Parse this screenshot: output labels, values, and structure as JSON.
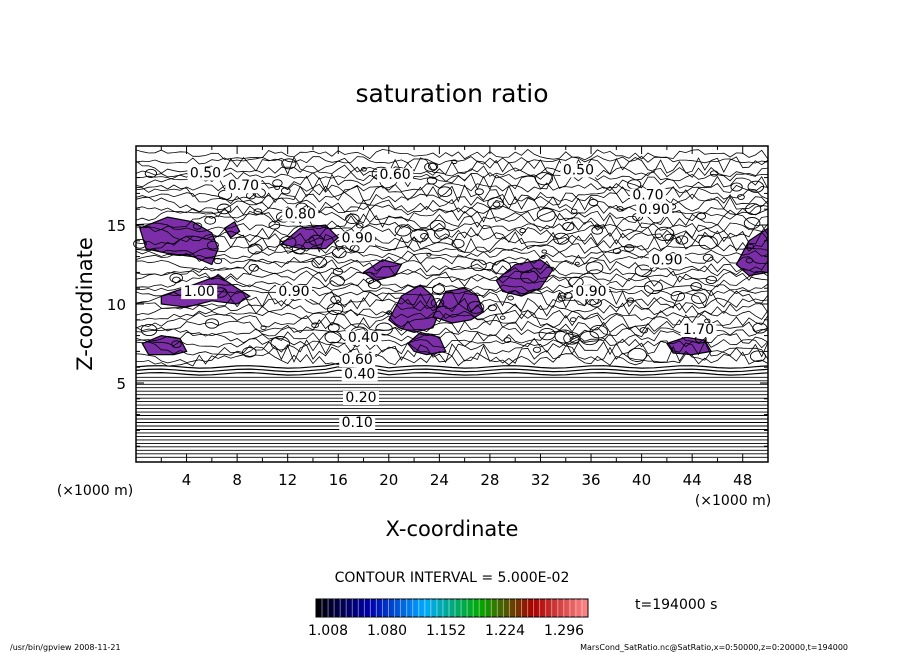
{
  "chart_data": {
    "type": "contour",
    "title": "saturation ratio",
    "xlabel": "X-coordinate",
    "ylabel": "Z-coordinate",
    "x_unit": "(×1000 m)",
    "y_unit": "(×1000 m)",
    "xlim": [
      0,
      50
    ],
    "ylim": [
      0,
      20
    ],
    "x_ticks": [
      4,
      8,
      12,
      16,
      20,
      24,
      28,
      32,
      36,
      40,
      44,
      48
    ],
    "y_ticks": [
      5,
      10,
      15
    ],
    "contour_interval_text": "CONTOUR INTERVAL = 5.000E-02",
    "time_text": "t=194000 s",
    "colorbar": {
      "ticks": [
        "1.008",
        "1.080",
        "1.152",
        "1.224",
        "1.296"
      ],
      "colors": [
        "#000000",
        "#0000aa",
        "#00aaff",
        "#00aa00",
        "#aa0000",
        "#ff8888"
      ]
    },
    "fill_color": "#7b2ea8",
    "contour_labels": [
      {
        "x": 5.5,
        "y": 18.0,
        "text": "0.50"
      },
      {
        "x": 20.5,
        "y": 17.9,
        "text": "0.60"
      },
      {
        "x": 35.0,
        "y": 18.2,
        "text": "0.50"
      },
      {
        "x": 8.5,
        "y": 17.2,
        "text": "0.70"
      },
      {
        "x": 40.5,
        "y": 16.6,
        "text": "0.70"
      },
      {
        "x": 13.0,
        "y": 15.4,
        "text": "0.80"
      },
      {
        "x": 41.0,
        "y": 15.7,
        "text": "0.90"
      },
      {
        "x": 17.5,
        "y": 13.9,
        "text": "0.90"
      },
      {
        "x": 42.0,
        "y": 12.5,
        "text": "0.90"
      },
      {
        "x": 5.0,
        "y": 10.5,
        "text": "1.00"
      },
      {
        "x": 12.5,
        "y": 10.5,
        "text": "0.90"
      },
      {
        "x": 36.0,
        "y": 10.5,
        "text": "0.90"
      },
      {
        "x": 44.5,
        "y": 8.1,
        "text": "1.70"
      },
      {
        "x": 18.0,
        "y": 7.6,
        "text": "0.40"
      },
      {
        "x": 17.5,
        "y": 6.2,
        "text": "0.60"
      },
      {
        "x": 17.7,
        "y": 5.3,
        "text": "0.40"
      },
      {
        "x": 17.8,
        "y": 3.8,
        "text": "0.20"
      },
      {
        "x": 17.5,
        "y": 2.2,
        "text": "0.10"
      }
    ],
    "supersaturated_regions": [
      [
        [
          0.3,
          14.8
        ],
        [
          2.5,
          15.5
        ],
        [
          4.5,
          15.2
        ],
        [
          6.0,
          14.5
        ],
        [
          6.5,
          13.5
        ],
        [
          6.0,
          12.5
        ],
        [
          4.5,
          13.0
        ],
        [
          2.5,
          13.2
        ],
        [
          0.8,
          13.5
        ]
      ],
      [
        [
          2.0,
          10.5
        ],
        [
          4.5,
          11.2
        ],
        [
          6.5,
          11.8
        ],
        [
          8.0,
          11.0
        ],
        [
          9.0,
          10.5
        ],
        [
          8.0,
          10.0
        ],
        [
          6.0,
          10.2
        ],
        [
          4.0,
          9.8
        ],
        [
          2.0,
          10.0
        ]
      ],
      [
        [
          11.5,
          13.8
        ],
        [
          13.0,
          14.8
        ],
        [
          15.0,
          15.0
        ],
        [
          16.0,
          14.2
        ],
        [
          15.0,
          13.5
        ],
        [
          13.0,
          13.5
        ]
      ],
      [
        [
          7.0,
          14.8
        ],
        [
          7.8,
          15.2
        ],
        [
          8.2,
          14.6
        ],
        [
          7.5,
          14.2
        ]
      ],
      [
        [
          0.5,
          7.5
        ],
        [
          2.0,
          8.0
        ],
        [
          3.5,
          7.8
        ],
        [
          4.0,
          7.0
        ],
        [
          3.0,
          6.8
        ],
        [
          1.0,
          6.8
        ]
      ],
      [
        [
          18.0,
          12.0
        ],
        [
          19.5,
          12.8
        ],
        [
          21.0,
          12.5
        ],
        [
          20.5,
          11.8
        ],
        [
          19.0,
          11.5
        ]
      ],
      [
        [
          20.0,
          9.0
        ],
        [
          21.0,
          10.5
        ],
        [
          22.5,
          11.2
        ],
        [
          23.5,
          10.5
        ],
        [
          24.0,
          9.5
        ],
        [
          23.5,
          8.5
        ],
        [
          22.0,
          8.2
        ],
        [
          20.8,
          8.5
        ]
      ],
      [
        [
          23.5,
          9.2
        ],
        [
          24.5,
          10.8
        ],
        [
          26.0,
          11.0
        ],
        [
          27.0,
          10.5
        ],
        [
          27.5,
          9.5
        ],
        [
          26.5,
          9.0
        ],
        [
          25.0,
          8.8
        ]
      ],
      [
        [
          21.5,
          7.5
        ],
        [
          22.5,
          8.2
        ],
        [
          24.0,
          7.9
        ],
        [
          24.5,
          7.0
        ],
        [
          23.0,
          6.8
        ],
        [
          22.0,
          7.0
        ]
      ],
      [
        [
          28.5,
          11.5
        ],
        [
          30.0,
          12.5
        ],
        [
          32.0,
          12.8
        ],
        [
          33.0,
          12.2
        ],
        [
          32.0,
          11.0
        ],
        [
          30.5,
          10.5
        ],
        [
          29.0,
          10.8
        ]
      ],
      [
        [
          42.0,
          7.5
        ],
        [
          43.5,
          7.9
        ],
        [
          45.0,
          7.7
        ],
        [
          45.5,
          7.0
        ],
        [
          44.0,
          6.8
        ],
        [
          42.5,
          6.9
        ]
      ],
      [
        [
          47.5,
          12.5
        ],
        [
          48.5,
          14.0
        ],
        [
          50.0,
          14.8
        ],
        [
          50.0,
          12.0
        ],
        [
          48.5,
          11.8
        ]
      ]
    ]
  },
  "footer": {
    "program": "/usr/bin/gpview   2008-11-21",
    "source": "MarsCond_SatRatio.nc@SatRatio,x=0:50000,z=0:20000,t=194000"
  }
}
